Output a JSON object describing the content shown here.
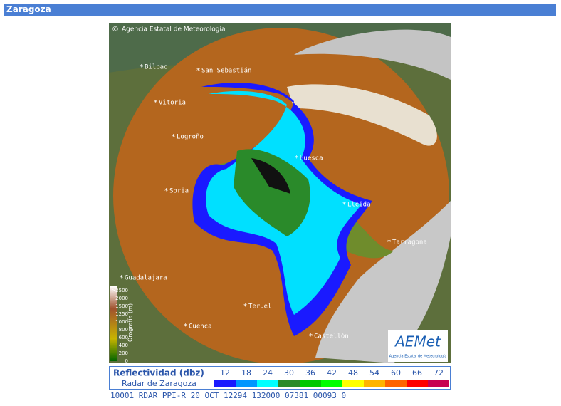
{
  "header": {
    "title": "Zaragoza"
  },
  "map": {
    "copyright": "Agencia Estatal de Meteorología",
    "cities": [
      {
        "label": "Bilbao"
      },
      {
        "label": "San Sebastián"
      },
      {
        "label": "Vitoria"
      },
      {
        "label": "Logroño"
      },
      {
        "label": "Huesca"
      },
      {
        "label": "Soria"
      },
      {
        "label": "Lleida"
      },
      {
        "label": "Tarragona"
      },
      {
        "label": "Guadalajara"
      },
      {
        "label": "Teruel"
      },
      {
        "label": "Cuenca"
      },
      {
        "label": "Castellón"
      }
    ],
    "orography": {
      "title": "Orografía (m)",
      "ticks": [
        ">2500",
        "2000",
        "1500",
        "1250",
        "1000",
        "800",
        "600",
        "400",
        "200",
        "0"
      ]
    },
    "logo": {
      "brand": "AEMet",
      "caption": "Agencia Estatal de Meteorología"
    }
  },
  "legend": {
    "title": "Reflectividad (dbz)",
    "subtitle": "Radar de Zaragoza",
    "levels": [
      {
        "value": 12,
        "color": "#1a1aff"
      },
      {
        "value": 18,
        "color": "#0096ff"
      },
      {
        "value": 24,
        "color": "#00ffff"
      },
      {
        "value": 30,
        "color": "#2a8a2a"
      },
      {
        "value": 36,
        "color": "#00c800"
      },
      {
        "value": 42,
        "color": "#00ff00"
      },
      {
        "value": 48,
        "color": "#ffff00"
      },
      {
        "value": 54,
        "color": "#ffb400"
      },
      {
        "value": 60,
        "color": "#ff6400"
      },
      {
        "value": 66,
        "color": "#ff0000"
      },
      {
        "value": 72,
        "color": "#c80050"
      }
    ],
    "status": "10001 RDAR_PPI-R  20 OCT 12294 132000 07381 00093 0"
  }
}
